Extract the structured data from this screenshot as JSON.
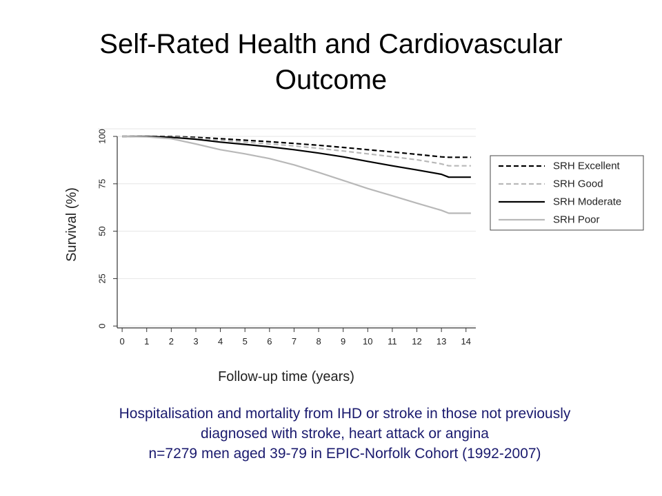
{
  "slide": {
    "title_line1": "Self-Rated Health and Cardiovascular",
    "title_line2": "Outcome",
    "caption": [
      "Hospitalisation and mortality from IHD or stroke in those not previously",
      "diagnosed with stroke, heart attack or angina",
      "n=7279 men aged 39-79 in EPIC-Norfolk Cohort (1992-2007)"
    ],
    "caption_color": "#1a1a6e"
  },
  "chart_data": {
    "type": "line",
    "xlabel": "Follow-up time (years)",
    "ylabel": "Survival (%)",
    "xlim": [
      -0.2,
      14.4
    ],
    "ylim": [
      -1,
      100
    ],
    "xticks": [
      "0",
      "1",
      "2",
      "3",
      "4",
      "5",
      "6",
      "7",
      "8",
      "9",
      "10",
      "11",
      "12",
      "13",
      "14"
    ],
    "yticks": [
      "0",
      "25",
      "50",
      "75",
      "100"
    ],
    "legend_position": "right",
    "series": [
      {
        "name": "SRH Excellent",
        "color": "#000000",
        "dash": "dashed",
        "x": [
          0,
          1,
          2,
          3,
          4,
          5,
          6,
          7,
          8,
          9,
          10,
          11,
          12,
          13,
          13.3,
          14.2
        ],
        "y": [
          100,
          100,
          100,
          99.5,
          98.8,
          98,
          97.2,
          96.3,
          95.3,
          94.2,
          93,
          91.8,
          90.5,
          89.2,
          89,
          89
        ]
      },
      {
        "name": "SRH Good",
        "color": "#b8b8b8",
        "dash": "dashed",
        "x": [
          0,
          1,
          2,
          3,
          4,
          5,
          6,
          7,
          8,
          9,
          10,
          11,
          12,
          13,
          13.3,
          14.2
        ],
        "y": [
          100,
          100,
          99.8,
          99,
          98,
          97,
          96,
          95,
          93.7,
          92.3,
          90.8,
          89.3,
          87.7,
          85.5,
          84.5,
          84.5
        ]
      },
      {
        "name": "SRH Moderate",
        "color": "#000000",
        "dash": "solid",
        "x": [
          0,
          1,
          2,
          3,
          4,
          5,
          6,
          7,
          8,
          9,
          10,
          11,
          12,
          13,
          13.3,
          14.2
        ],
        "y": [
          100,
          100,
          99.5,
          98.5,
          97,
          95.8,
          94.5,
          93,
          91.2,
          89.2,
          86.8,
          84.5,
          82.3,
          80,
          78.5,
          78.5
        ]
      },
      {
        "name": "SRH Poor",
        "color": "#b8b8b8",
        "dash": "solid",
        "x": [
          0,
          1,
          2,
          3,
          4,
          5,
          6,
          7,
          8,
          9,
          10,
          11,
          12,
          13,
          13.3,
          14.2
        ],
        "y": [
          100,
          99.8,
          98.8,
          96,
          93,
          90.8,
          88.3,
          85,
          81,
          76.8,
          72.5,
          68.7,
          64.8,
          61,
          59.5,
          59.5
        ]
      }
    ]
  }
}
